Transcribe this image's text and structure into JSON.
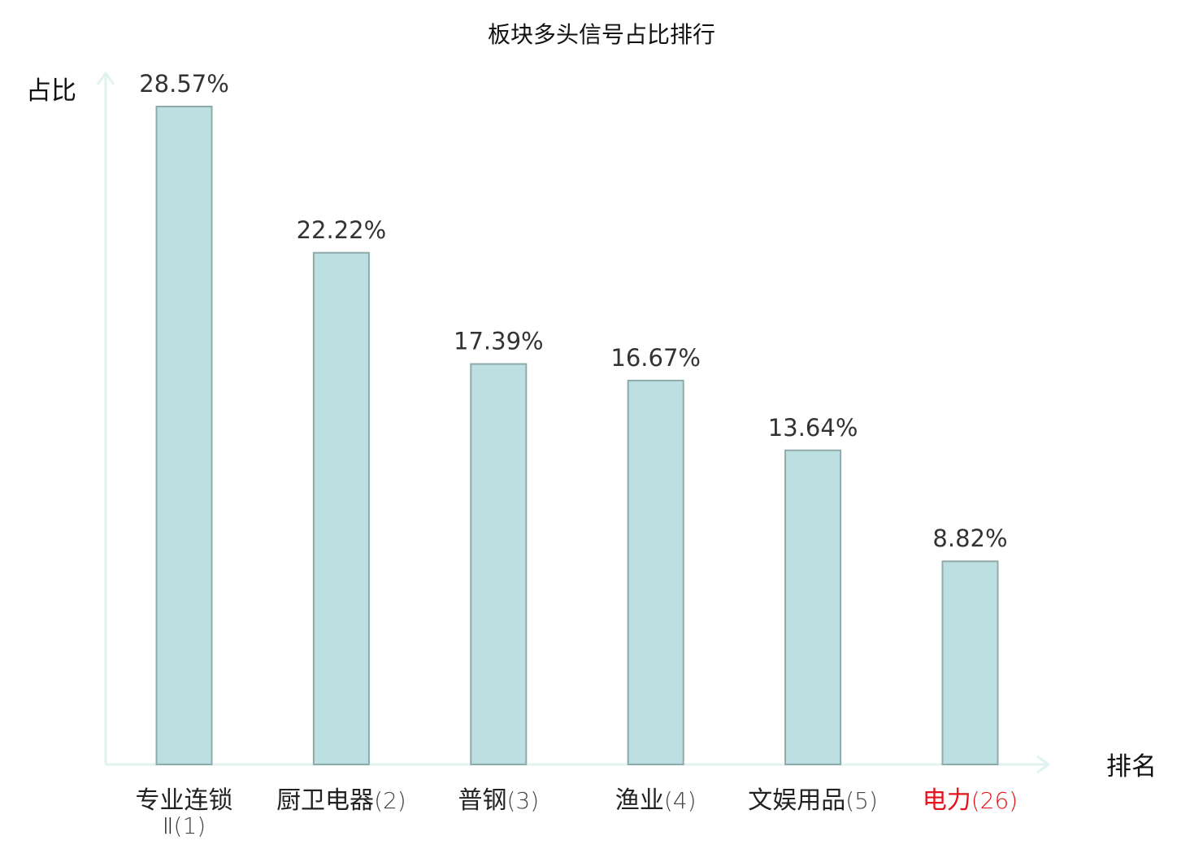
{
  "chart_data": {
    "type": "bar",
    "title": "板块多头信号占比排行",
    "ylabel": "占比",
    "xlabel": "排名",
    "categories": [
      {
        "name": "专业连锁Ⅱ",
        "rank": "(1)"
      },
      {
        "name": "厨卫电器",
        "rank": "(2)"
      },
      {
        "name": "普钢",
        "rank": "(3)"
      },
      {
        "name": "渔业",
        "rank": "(4)"
      },
      {
        "name": "文娱用品",
        "rank": "(5)"
      },
      {
        "name": "电力",
        "rank": "(26)",
        "highlight": true
      }
    ],
    "values": [
      28.57,
      22.22,
      17.39,
      16.67,
      13.64,
      8.82
    ],
    "value_labels": [
      "28.57%",
      "22.22%",
      "17.39%",
      "16.67%",
      "13.64%",
      "8.82%"
    ],
    "ylim": [
      0,
      28.57
    ],
    "grid": false,
    "colors": {
      "bar_fill": "#bce0e2",
      "bar_stroke": "#8eaaab",
      "axis": "#e0f3f0",
      "text": "#333333",
      "label_text": "#222222",
      "highlight_text": "#e5131b"
    }
  }
}
